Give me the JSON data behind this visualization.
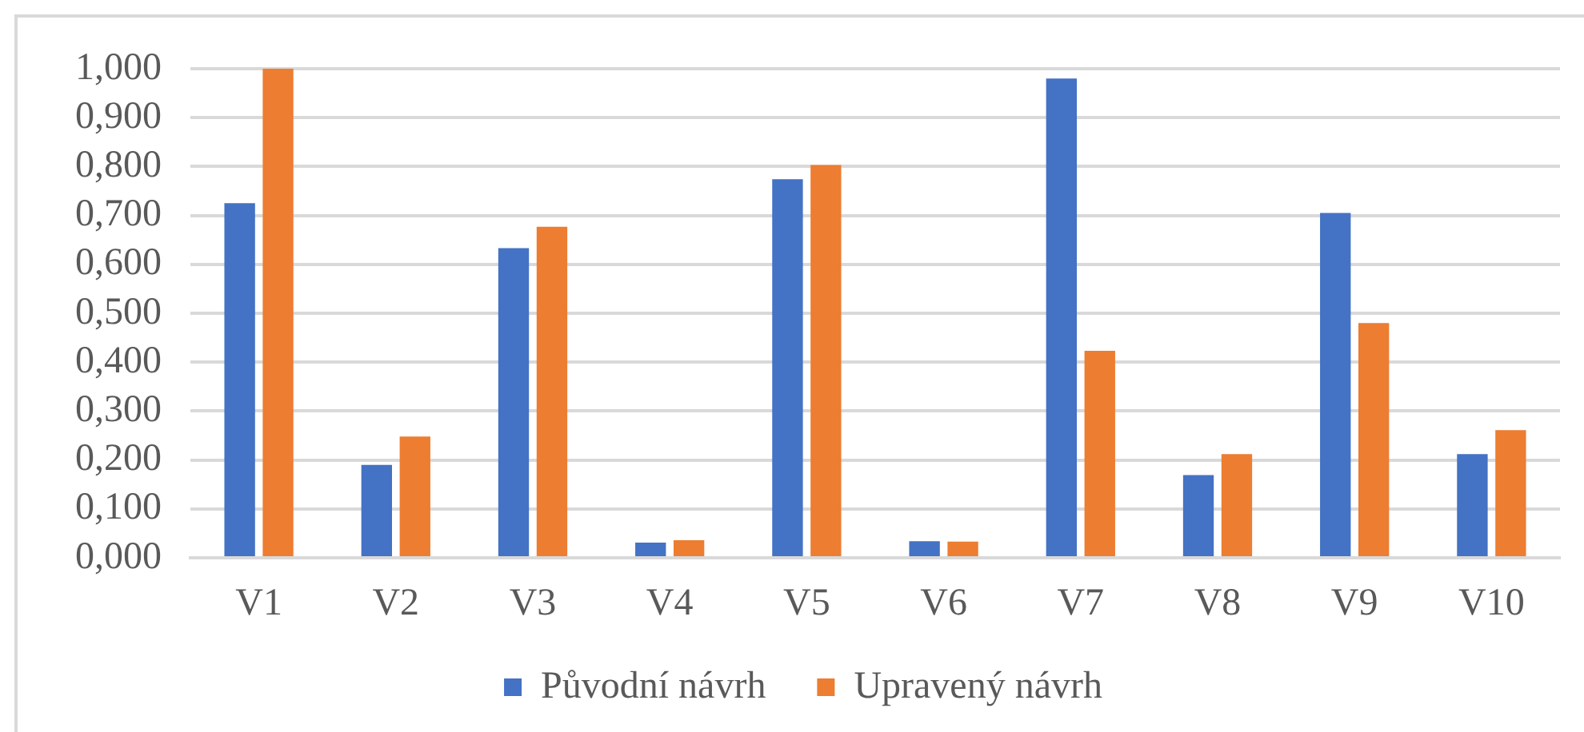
{
  "chart_data": {
    "type": "bar",
    "categories": [
      "V1",
      "V2",
      "V3",
      "V4",
      "V5",
      "V6",
      "V7",
      "V8",
      "V9",
      "V10"
    ],
    "series": [
      {
        "name": "Původní návrh",
        "color": "#4472c4",
        "values": [
          0.725,
          0.19,
          0.633,
          0.031,
          0.774,
          0.034,
          0.98,
          0.169,
          0.705,
          0.212
        ]
      },
      {
        "name": "Upravený návrh",
        "color": "#ed7d31",
        "values": [
          1.0,
          0.248,
          0.677,
          0.036,
          0.803,
          0.033,
          0.423,
          0.212,
          0.48,
          0.261
        ]
      }
    ],
    "ylim": [
      0,
      1
    ],
    "yticks": [
      {
        "value": 0,
        "label": "0,000"
      },
      {
        "value": 0.1,
        "label": "0,100"
      },
      {
        "value": 0.2,
        "label": "0,200"
      },
      {
        "value": 0.3,
        "label": "0,300"
      },
      {
        "value": 0.4,
        "label": "0,400"
      },
      {
        "value": 0.5,
        "label": "0,500"
      },
      {
        "value": 0.6,
        "label": "0,600"
      },
      {
        "value": 0.7,
        "label": "0,700"
      },
      {
        "value": 0.8,
        "label": "0,800"
      },
      {
        "value": 0.9,
        "label": "0,900"
      },
      {
        "value": 1.0,
        "label": "1,000"
      }
    ],
    "grid": "y",
    "legend": "bottom"
  }
}
